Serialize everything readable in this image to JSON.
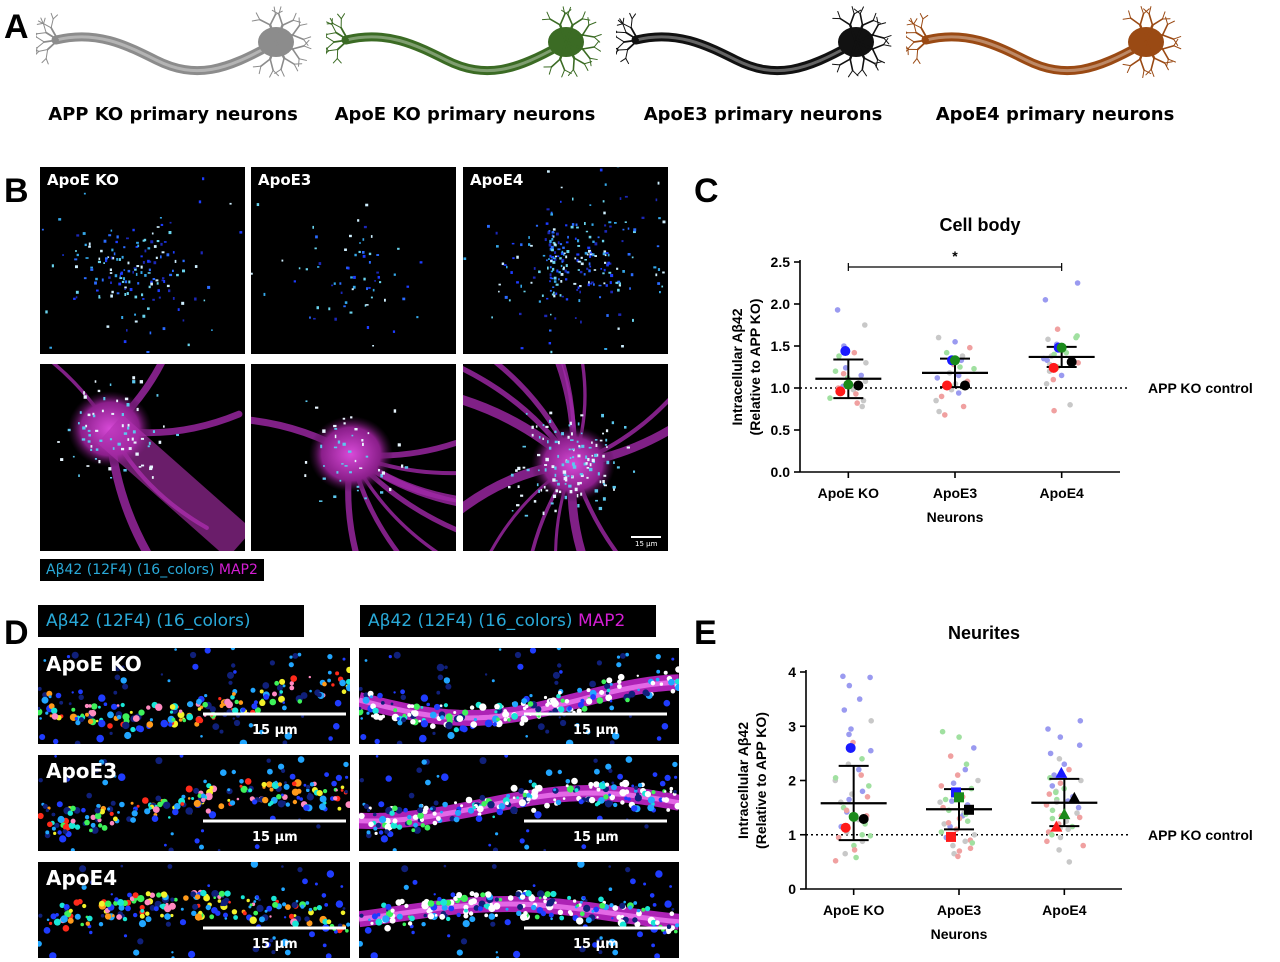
{
  "panels": {
    "A": "A",
    "B": "B",
    "C": "C",
    "D": "D",
    "E": "E"
  },
  "neurons": [
    {
      "label": "APP KO primary neurons",
      "color": "#8c8c8c"
    },
    {
      "label": "ApoE KO primary neurons",
      "color": "#3b6b24"
    },
    {
      "label": "ApoE3 primary neurons",
      "color": "#111111"
    },
    {
      "label": "ApoE4 primary neurons",
      "color": "#9a4a14"
    }
  ],
  "micrographs": {
    "columns": [
      "ApoE KO",
      "ApoE3",
      "ApoE4"
    ],
    "scale_bar": "15 µm",
    "legend_channel": "Aβ42 (12F4) (16_colors)",
    "legend_map2": "MAP2"
  },
  "strips": {
    "header_left": "Aβ42 (12F4) (16_colors)",
    "header_right_channel": "Aβ42 (12F4) (16_colors)",
    "header_right_map2": "MAP2",
    "rows": [
      "ApoE KO",
      "ApoE3",
      "ApoE4"
    ],
    "scale_bar": "15 µm"
  },
  "colors": {
    "blue": "#1a1aff",
    "red": "#ff1a1a",
    "green": "#1b8a1b",
    "black": "#000000",
    "light_blue": "#9a9af0",
    "light_red": "#f0a0a0",
    "light_green": "#a0e0a0",
    "light_gray": "#c8c8c8",
    "magenta": "#c42cc4",
    "cyan": "#29a9d8"
  },
  "chart_data": [
    {
      "type": "scatter",
      "title": "Cell body",
      "xlabel": "Neurons",
      "ylabel": "Intracellular Aβ42",
      "ylabel2": "(Relative to APP KO)",
      "categories": [
        "ApoE KO",
        "ApoE3",
        "ApoE4"
      ],
      "yticks": [
        "0.0",
        "0.5",
        "1.0",
        "1.5",
        "2.0",
        "2.5"
      ],
      "ylim": [
        0,
        2.5
      ],
      "reference_line": {
        "y": 1.0,
        "label": "APP KO control"
      },
      "significance": {
        "from": "ApoE KO",
        "to": "ApoE4",
        "label": "*"
      },
      "summary": [
        {
          "category": "ApoE KO",
          "mean": 1.11,
          "sd_low": 0.88,
          "sd_high": 1.34
        },
        {
          "category": "ApoE3",
          "mean": 1.18,
          "sd_low": 1.01,
          "sd_high": 1.35
        },
        {
          "category": "ApoE4",
          "mean": 1.37,
          "sd_low": 1.25,
          "sd_high": 1.49
        }
      ],
      "means_by_culture": [
        {
          "category": "ApoE KO",
          "values": [
            1.44,
            0.96,
            1.04,
            1.03
          ],
          "colors": [
            "blue",
            "red",
            "green",
            "black"
          ]
        },
        {
          "category": "ApoE3",
          "values": [
            1.33,
            1.03,
            1.33,
            1.03
          ],
          "colors": [
            "blue",
            "red",
            "green",
            "black"
          ]
        },
        {
          "category": "ApoE4",
          "values": [
            1.48,
            1.24,
            1.48,
            1.31
          ],
          "colors": [
            "blue",
            "red",
            "green",
            "black"
          ]
        }
      ],
      "cells": [
        {
          "category": "ApoE KO",
          "values": [
            1.93,
            1.75,
            1.5,
            1.42,
            1.38,
            1.3,
            1.24,
            1.17,
            1.12,
            1.08,
            1.05,
            1.02,
            0.98,
            0.93,
            0.88,
            0.85,
            0.82,
            0.78,
            1.2,
            1.0,
            0.95,
            1.15
          ],
          "colors": [
            "light_blue",
            "light_gray",
            "light_blue",
            "light_red",
            "light_green",
            "light_gray",
            "light_blue",
            "light_red",
            "light_green",
            "light_gray",
            "light_red",
            "light_blue",
            "light_gray",
            "light_red",
            "light_green",
            "light_gray",
            "light_red",
            "light_gray",
            "light_green",
            "light_red",
            "light_green",
            "light_blue"
          ]
        },
        {
          "category": "ApoE3",
          "values": [
            1.6,
            1.55,
            1.48,
            1.42,
            1.38,
            1.33,
            1.28,
            1.23,
            1.18,
            1.12,
            1.08,
            1.02,
            0.98,
            0.94,
            0.9,
            0.85,
            0.78,
            0.72,
            0.68,
            1.25,
            1.15,
            1.05
          ],
          "colors": [
            "light_gray",
            "light_blue",
            "light_red",
            "light_green",
            "light_gray",
            "light_blue",
            "light_red",
            "light_green",
            "light_gray",
            "light_blue",
            "light_red",
            "light_green",
            "light_gray",
            "light_blue",
            "light_red",
            "light_gray",
            "light_red",
            "light_gray",
            "light_red",
            "light_green",
            "light_blue",
            "light_gray"
          ]
        },
        {
          "category": "ApoE4",
          "values": [
            2.25,
            2.05,
            1.7,
            1.62,
            1.58,
            1.52,
            1.46,
            1.42,
            1.38,
            1.33,
            1.3,
            1.25,
            1.2,
            1.15,
            1.1,
            1.05,
            0.8,
            0.73,
            1.4,
            1.35,
            1.6,
            1.28
          ],
          "colors": [
            "light_blue",
            "light_blue",
            "light_red",
            "light_green",
            "light_gray",
            "light_blue",
            "light_red",
            "light_green",
            "light_gray",
            "light_blue",
            "light_red",
            "light_green",
            "light_gray",
            "light_blue",
            "light_red",
            "light_gray",
            "light_gray",
            "light_red",
            "light_green",
            "light_blue",
            "light_green",
            "light_gray"
          ]
        }
      ]
    },
    {
      "type": "scatter",
      "title": "Neurites",
      "xlabel": "Neurons",
      "ylabel": "Intracellular Aβ42",
      "ylabel2": "(Relative to APP KO)",
      "categories": [
        "ApoE KO",
        "ApoE3",
        "ApoE4"
      ],
      "yticks": [
        "0",
        "1",
        "2",
        "3",
        "4"
      ],
      "ylim": [
        0,
        4
      ],
      "reference_line": {
        "y": 1.0,
        "label": "APP KO control"
      },
      "summary": [
        {
          "category": "ApoE KO",
          "mean": 1.58,
          "sd_low": 0.9,
          "sd_high": 2.27
        },
        {
          "category": "ApoE3",
          "mean": 1.47,
          "sd_low": 1.1,
          "sd_high": 1.84
        },
        {
          "category": "ApoE4",
          "mean": 1.59,
          "sd_low": 1.16,
          "sd_high": 2.03
        }
      ],
      "means_by_culture": [
        {
          "category": "ApoE KO",
          "values": [
            2.6,
            1.13,
            1.33,
            1.29
          ],
          "colors": [
            "blue",
            "red",
            "green",
            "black"
          ],
          "marker": "circle"
        },
        {
          "category": "ApoE3",
          "values": [
            1.78,
            0.96,
            1.69,
            1.46
          ],
          "colors": [
            "blue",
            "red",
            "green",
            "black"
          ],
          "marker": "square"
        },
        {
          "category": "ApoE4",
          "values": [
            2.14,
            1.15,
            1.38,
            1.68
          ],
          "colors": [
            "blue",
            "red",
            "green",
            "black"
          ],
          "marker": "triangle"
        }
      ],
      "cells": [
        {
          "category": "ApoE KO",
          "values": [
            3.92,
            3.9,
            3.75,
            3.5,
            3.3,
            3.1,
            2.95,
            2.85,
            2.7,
            2.55,
            2.4,
            2.3,
            2.2,
            2.1,
            2.0,
            1.9,
            1.8,
            1.7,
            1.6,
            1.5,
            1.42,
            1.35,
            1.28,
            1.2,
            1.12,
            1.05,
            1.0,
            0.95,
            0.88,
            0.8,
            0.72,
            0.65,
            0.58,
            0.52,
            1.65,
            1.45,
            2.05,
            1.75,
            1.15,
            0.98
          ],
          "colors": [
            "light_blue",
            "light_blue",
            "light_blue",
            "light_blue",
            "light_blue",
            "light_gray",
            "light_blue",
            "light_blue",
            "light_red",
            "light_blue",
            "light_green",
            "light_gray",
            "light_blue",
            "light_red",
            "light_gray",
            "light_green",
            "light_blue",
            "light_red",
            "light_gray",
            "light_green",
            "light_blue",
            "light_red",
            "light_gray",
            "light_green",
            "light_red",
            "light_gray",
            "light_green",
            "light_red",
            "light_gray",
            "light_green",
            "light_red",
            "light_gray",
            "light_green",
            "light_red",
            "light_blue",
            "light_red",
            "light_green",
            "light_gray",
            "light_blue",
            "light_green"
          ]
        },
        {
          "category": "ApoE3",
          "values": [
            2.9,
            2.8,
            2.6,
            2.45,
            2.3,
            2.2,
            2.1,
            2.0,
            1.95,
            1.9,
            1.85,
            1.8,
            1.75,
            1.7,
            1.65,
            1.6,
            1.55,
            1.5,
            1.45,
            1.4,
            1.35,
            1.3,
            1.25,
            1.2,
            1.15,
            1.1,
            1.05,
            1.0,
            0.95,
            0.9,
            0.85,
            0.8,
            0.75,
            0.7,
            0.65,
            0.6,
            1.62,
            1.38,
            1.22,
            0.88
          ],
          "colors": [
            "light_green",
            "light_green",
            "light_blue",
            "light_red",
            "light_green",
            "light_blue",
            "light_red",
            "light_gray",
            "light_blue",
            "light_red",
            "light_green",
            "light_gray",
            "light_blue",
            "light_red",
            "light_green",
            "light_gray",
            "light_blue",
            "light_red",
            "light_green",
            "light_gray",
            "light_blue",
            "light_red",
            "light_green",
            "light_gray",
            "light_blue",
            "light_red",
            "light_green",
            "light_gray",
            "light_blue",
            "light_red",
            "light_green",
            "light_gray",
            "light_red",
            "light_red",
            "light_gray",
            "light_red",
            "light_blue",
            "light_green",
            "light_red",
            "light_gray"
          ]
        },
        {
          "category": "ApoE4",
          "values": [
            3.1,
            2.95,
            2.8,
            2.65,
            2.5,
            2.4,
            2.3,
            2.2,
            2.1,
            2.05,
            2.0,
            1.95,
            1.9,
            1.85,
            1.8,
            1.75,
            1.7,
            1.65,
            1.6,
            1.55,
            1.5,
            1.45,
            1.4,
            1.35,
            1.3,
            1.25,
            1.2,
            1.15,
            1.1,
            1.05,
            1.0,
            0.95,
            0.88,
            0.8,
            0.72,
            0.5,
            1.62,
            1.32,
            1.78,
            1.12
          ],
          "colors": [
            "light_blue",
            "light_blue",
            "light_blue",
            "light_blue",
            "light_blue",
            "light_gray",
            "light_blue",
            "light_red",
            "light_blue",
            "light_green",
            "light_gray",
            "light_red",
            "light_blue",
            "light_green",
            "light_gray",
            "light_red",
            "light_blue",
            "light_green",
            "light_gray",
            "light_red",
            "light_blue",
            "light_green",
            "light_gray",
            "light_red",
            "light_green",
            "light_gray",
            "light_red",
            "light_green",
            "light_gray",
            "light_red",
            "light_green",
            "light_gray",
            "light_red",
            "light_red",
            "light_gray",
            "light_gray",
            "light_blue",
            "light_red",
            "light_green",
            "light_gray"
          ]
        }
      ]
    }
  ]
}
